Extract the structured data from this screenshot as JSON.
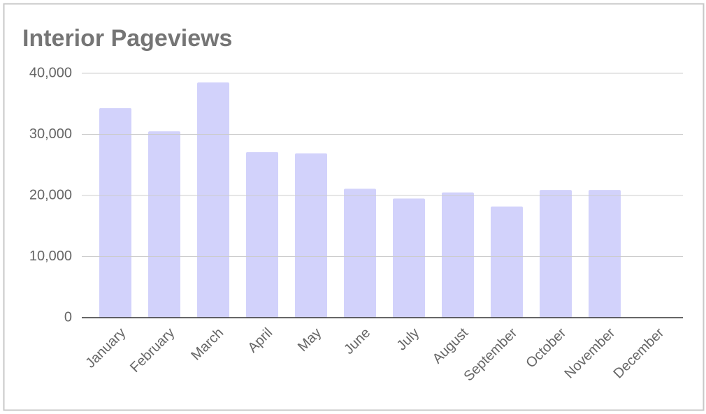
{
  "chart_data": {
    "type": "bar",
    "title": "Interior Pageviews",
    "categories": [
      "January",
      "February",
      "March",
      "April",
      "May",
      "June",
      "July",
      "August",
      "September",
      "October",
      "November",
      "December"
    ],
    "values": [
      34300,
      30500,
      38500,
      27100,
      26900,
      21100,
      19500,
      20500,
      18200,
      20900,
      20900,
      null
    ],
    "color": "#d2d2fb",
    "ylim": [
      0,
      40000
    ],
    "yticks": [
      0,
      {
        "value": 10000,
        "label": "10,000"
      },
      {
        "value": 20000,
        "label": "20,000"
      },
      {
        "value": 30000,
        "label": "30,000"
      },
      {
        "value": 40000,
        "label": "40,000"
      }
    ],
    "grid": true
  }
}
